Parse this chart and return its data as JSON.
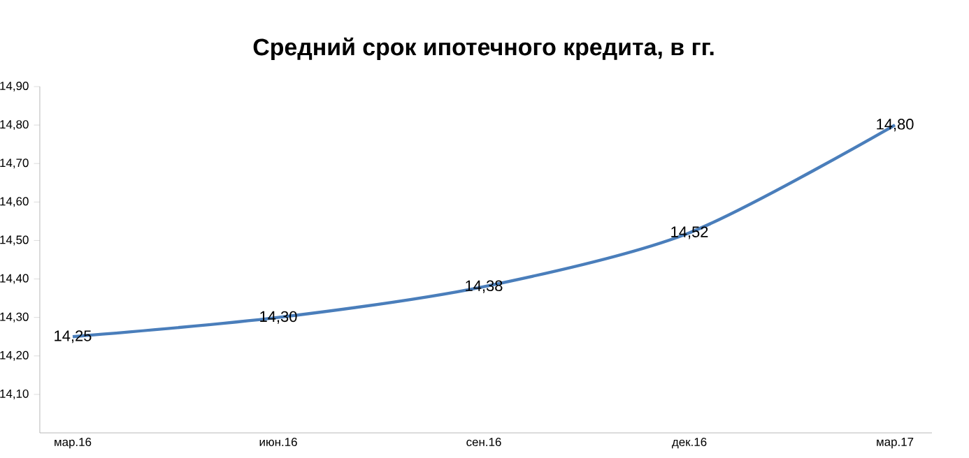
{
  "chart_data": {
    "type": "line",
    "title": "Средний срок ипотечного кредита, в гг.",
    "categories": [
      "мар.16",
      "июн.16",
      "сен.16",
      "дек.16",
      "мар.17"
    ],
    "series": [
      {
        "color": "#4a7ebb",
        "values": [
          14.25,
          14.3,
          14.38,
          14.52,
          14.8
        ],
        "value_labels": [
          "14,25",
          "14,30",
          "14,38",
          "14,52",
          "14,80"
        ]
      }
    ],
    "ylim": [
      14.0,
      14.9
    ],
    "yticks": [
      {
        "value": 14.1,
        "label": "14,10"
      },
      {
        "value": 14.2,
        "label": "14,20"
      },
      {
        "value": 14.3,
        "label": "14,30"
      },
      {
        "value": 14.4,
        "label": "14,40"
      },
      {
        "value": 14.5,
        "label": "14,50"
      },
      {
        "value": 14.6,
        "label": "14,60"
      },
      {
        "value": 14.7,
        "label": "14,70"
      },
      {
        "value": 14.8,
        "label": "14,80"
      },
      {
        "value": 14.9,
        "label": "14,90"
      }
    ],
    "grid": false,
    "legend": false,
    "marker": "none",
    "line_style": "solid"
  }
}
